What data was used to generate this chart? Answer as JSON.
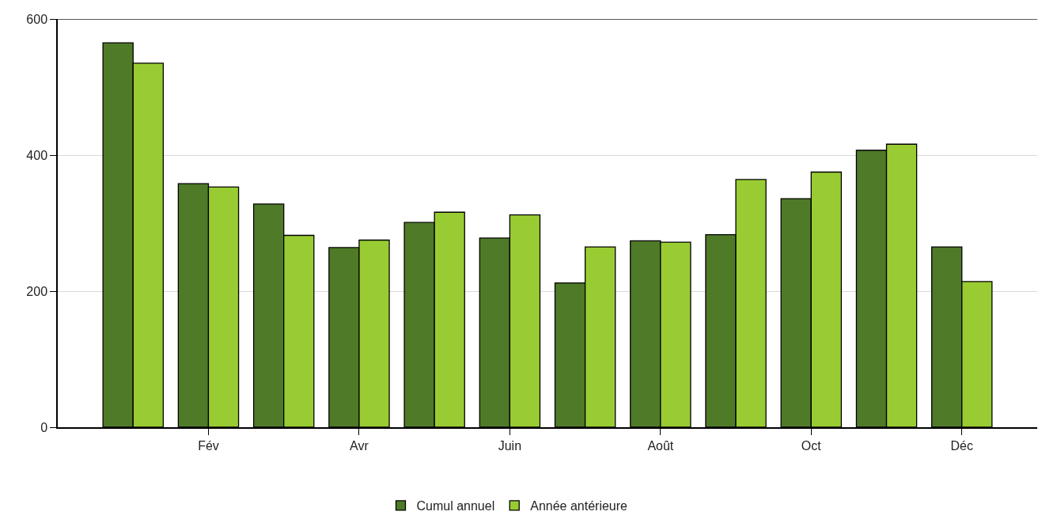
{
  "chart_data": {
    "type": "bar",
    "categories": [
      null,
      "Fév",
      null,
      "Avr",
      null,
      "Juin",
      null,
      "Août",
      null,
      "Oct",
      null,
      "Déc"
    ],
    "series": [
      {
        "name": "Cumul annuel",
        "color": "#4f7a28",
        "values": [
          565,
          358,
          328,
          264,
          301,
          278,
          212,
          274,
          283,
          336,
          407,
          265
        ]
      },
      {
        "name": "Année antérieure",
        "color": "#99cc33",
        "values": [
          535,
          353,
          282,
          275,
          316,
          312,
          265,
          272,
          364,
          375,
          416,
          214
        ]
      }
    ],
    "ylim": [
      0,
      600
    ],
    "yticks": [
      0,
      200,
      400,
      600
    ],
    "grid": "y",
    "legend": "bottom"
  }
}
